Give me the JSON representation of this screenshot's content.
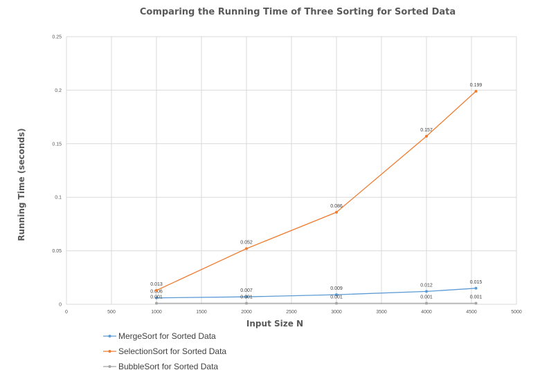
{
  "chart_data": {
    "type": "line",
    "title": "Comparing the Running Time of Three Sorting for Sorted Data",
    "xlabel": "Input Size N",
    "ylabel": "Running Time (seconds)",
    "xlim": [
      0,
      5000
    ],
    "ylim": [
      0,
      0.25
    ],
    "xticks": [
      "0",
      "500",
      "1000",
      "1500",
      "2000",
      "2500",
      "3000",
      "3500",
      "4000",
      "4500",
      "5000"
    ],
    "yticks": [
      "0",
      "0.05",
      "0.1",
      "0.15",
      "0.2",
      "0.25"
    ],
    "grid": true,
    "legend_position": "bottom-left",
    "series": [
      {
        "name": "MergeSort for Sorted Data",
        "color": "#5b9bd5",
        "x": [
          1000,
          2000,
          3000,
          4000,
          4550
        ],
        "y": [
          0.006,
          0.007,
          0.009,
          0.012,
          0.015
        ],
        "labels": [
          "0.006",
          "0.007",
          "0.009",
          "0.012",
          "0.015"
        ]
      },
      {
        "name": "SelectionSort for Sorted Data",
        "color": "#ed7d31",
        "x": [
          1000,
          2000,
          3000,
          4000,
          4550
        ],
        "y": [
          0.013,
          0.052,
          0.086,
          0.157,
          0.199
        ],
        "labels": [
          "0.013",
          "0.052",
          "0.086",
          "0.157",
          "0.199"
        ]
      },
      {
        "name": "BubbleSort for Sorted Data",
        "color": "#a5a5a5",
        "x": [
          1000,
          2000,
          3000,
          4000,
          4550
        ],
        "y": [
          0.001,
          0.001,
          0.001,
          0.001,
          0.001
        ],
        "labels": [
          "0.001",
          "0.001",
          "0.001",
          "0.001",
          "0.001"
        ]
      }
    ]
  }
}
